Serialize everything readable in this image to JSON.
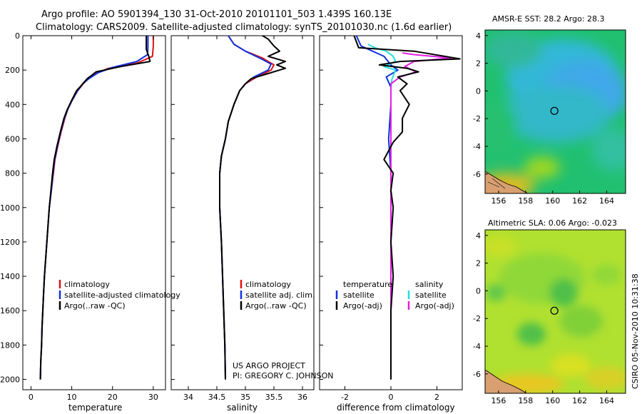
{
  "header": {
    "line1": "Argo profile: AO 5901394_130 31-Oct-2010 20101101_503 1.439S 160.13E",
    "line2": "Climatology: CARS2009. Satellite-adjusted climatology: synTS_20101030.nc (1.6d earlier)"
  },
  "credit": {
    "project": "US ARGO PROJECT",
    "pi": "PI: GREGORY C. JOHNSON"
  },
  "stamp": "CSIRO 05-Nov-2010 10:31:38",
  "colors": {
    "climatology": "#e01010",
    "satellite": "#1030e0",
    "argo": "#000000",
    "cyan": "#20e0e0",
    "magenta": "#e020e0"
  },
  "chart_data": [
    {
      "type": "line",
      "name": "temperature-profile",
      "xlabel": "temperature",
      "ylabel": "",
      "xlim": [
        -2,
        33
      ],
      "ylim": [
        2060,
        0
      ],
      "xticks": [
        "0",
        "10",
        "20",
        "30"
      ],
      "yticks": [
        "0",
        "200",
        "400",
        "600",
        "800",
        "1000",
        "1200",
        "1400",
        "1600",
        "1800",
        "2000"
      ],
      "legend": [
        "climatology",
        "satellite-adjusted climatology",
        "Argo(..raw -QC)"
      ],
      "series": [
        {
          "name": "climatology",
          "color": "#e01010",
          "points": [
            [
              30,
              0
            ],
            [
              30,
              60
            ],
            [
              29.8,
              120
            ],
            [
              26,
              160
            ],
            [
              19,
              190
            ],
            [
              16,
              220
            ],
            [
              14,
              250
            ],
            [
              12.8,
              280
            ],
            [
              11.5,
              320
            ],
            [
              10,
              380
            ],
            [
              9,
              430
            ],
            [
              8.3,
              480
            ],
            [
              7.4,
              560
            ],
            [
              6.6,
              640
            ],
            [
              5.9,
              720
            ],
            [
              5.5,
              800
            ],
            [
              5,
              900
            ],
            [
              4.5,
              1000
            ],
            [
              4.2,
              1100
            ],
            [
              3.9,
              1200
            ],
            [
              3.6,
              1300
            ],
            [
              3.3,
              1400
            ],
            [
              3.1,
              1500
            ],
            [
              2.9,
              1600
            ],
            [
              2.7,
              1700
            ],
            [
              2.6,
              1800
            ],
            [
              2.4,
              1900
            ],
            [
              2.3,
              2000
            ]
          ]
        },
        {
          "name": "satellite",
          "color": "#1030e0",
          "points": [
            [
              28.7,
              0
            ],
            [
              28.7,
              60
            ],
            [
              28.6,
              110
            ],
            [
              26,
              150
            ],
            [
              20,
              185
            ],
            [
              16.5,
              215
            ],
            [
              14.2,
              250
            ],
            [
              12.7,
              280
            ],
            [
              11.4,
              320
            ],
            [
              10,
              380
            ],
            [
              9,
              430
            ],
            [
              8.2,
              480
            ],
            [
              7.3,
              560
            ],
            [
              6.5,
              640
            ],
            [
              5.8,
              720
            ],
            [
              5.4,
              800
            ],
            [
              5,
              900
            ],
            [
              4.5,
              1000
            ],
            [
              4.2,
              1100
            ],
            [
              3.9,
              1200
            ],
            [
              3.6,
              1300
            ],
            [
              3.3,
              1400
            ],
            [
              3.1,
              1500
            ],
            [
              2.9,
              1600
            ],
            [
              2.7,
              1700
            ],
            [
              2.6,
              1800
            ],
            [
              2.4,
              1900
            ],
            [
              2.3,
              2000
            ]
          ]
        },
        {
          "name": "argo",
          "color": "#000000",
          "points": [
            [
              28.3,
              0
            ],
            [
              28.3,
              80
            ],
            [
              28.9,
              120
            ],
            [
              29.2,
              150
            ],
            [
              22,
              180
            ],
            [
              16,
              210
            ],
            [
              13.8,
              250
            ],
            [
              12.5,
              285
            ],
            [
              11.2,
              320
            ],
            [
              9.9,
              380
            ],
            [
              8.9,
              430
            ],
            [
              8.1,
              480
            ],
            [
              7.2,
              560
            ],
            [
              6.4,
              640
            ],
            [
              5.7,
              720
            ],
            [
              5.3,
              800
            ],
            [
              4.9,
              900
            ],
            [
              4.5,
              1000
            ],
            [
              4.2,
              1100
            ],
            [
              3.9,
              1200
            ],
            [
              3.6,
              1300
            ],
            [
              3.3,
              1400
            ],
            [
              3.1,
              1500
            ],
            [
              2.9,
              1600
            ],
            [
              2.7,
              1700
            ],
            [
              2.6,
              1800
            ],
            [
              2.4,
              1900
            ],
            [
              2.3,
              2000
            ]
          ]
        }
      ]
    },
    {
      "type": "line",
      "name": "salinity-profile",
      "xlabel": "salinity",
      "xlim": [
        33.7,
        36.2
      ],
      "ylim": [
        2060,
        0
      ],
      "xticks": [
        "34",
        "34.5",
        "35",
        "35.5",
        "36"
      ],
      "legend": [
        "climatology",
        "satellite adj. clim.",
        "Argo(..raw -QC)"
      ],
      "series": [
        {
          "name": "climatology",
          "color": "#e01010",
          "points": [
            [
              34.7,
              0
            ],
            [
              34.8,
              50
            ],
            [
              35,
              90
            ],
            [
              35.3,
              130
            ],
            [
              35.5,
              170
            ],
            [
              35.45,
              200
            ],
            [
              35.2,
              240
            ],
            [
              35,
              280
            ],
            [
              34.9,
              320
            ],
            [
              34.8,
              400
            ],
            [
              34.7,
              500
            ],
            [
              34.65,
              600
            ],
            [
              34.58,
              700
            ],
            [
              34.55,
              800
            ],
            [
              34.55,
              1000
            ],
            [
              34.58,
              1200
            ],
            [
              34.6,
              1400
            ],
            [
              34.62,
              1600
            ],
            [
              34.64,
              1800
            ],
            [
              34.65,
              2000
            ]
          ]
        },
        {
          "name": "satellite",
          "color": "#1030e0",
          "points": [
            [
              34.7,
              0
            ],
            [
              34.8,
              50
            ],
            [
              35,
              90
            ],
            [
              35.25,
              130
            ],
            [
              35.45,
              165
            ],
            [
              35.4,
              200
            ],
            [
              35.15,
              240
            ],
            [
              35,
              280
            ],
            [
              34.9,
              320
            ],
            [
              34.8,
              400
            ],
            [
              34.7,
              500
            ],
            [
              34.65,
              600
            ],
            [
              34.58,
              700
            ],
            [
              34.55,
              800
            ],
            [
              34.55,
              1000
            ],
            [
              34.58,
              1200
            ],
            [
              34.6,
              1400
            ],
            [
              34.62,
              1600
            ],
            [
              34.64,
              1800
            ],
            [
              34.65,
              2000
            ]
          ]
        },
        {
          "name": "argo",
          "color": "#000000",
          "points": [
            [
              35.3,
              0
            ],
            [
              35.4,
              20
            ],
            [
              35.5,
              60
            ],
            [
              35.6,
              90
            ],
            [
              35.4,
              120
            ],
            [
              35.7,
              150
            ],
            [
              35.55,
              170
            ],
            [
              35.7,
              190
            ],
            [
              35.4,
              220
            ],
            [
              35.1,
              250
            ],
            [
              35,
              280
            ],
            [
              34.9,
              320
            ],
            [
              34.8,
              400
            ],
            [
              34.7,
              500
            ],
            [
              34.65,
              600
            ],
            [
              34.58,
              700
            ],
            [
              34.55,
              800
            ],
            [
              34.55,
              1000
            ],
            [
              34.58,
              1200
            ],
            [
              34.6,
              1400
            ],
            [
              34.62,
              1600
            ],
            [
              34.64,
              1800
            ],
            [
              34.65,
              2000
            ]
          ]
        }
      ]
    },
    {
      "type": "line",
      "name": "difference-profile",
      "xlabel": "difference from climatology",
      "xlim": [
        -3.1,
        3.1
      ],
      "ylim": [
        2060,
        0
      ],
      "xticks": [
        "-2",
        "0",
        "2"
      ],
      "legend_temperature": [
        "temperature",
        "satellite",
        "Argo(-adj)"
      ],
      "legend_salinity": [
        "salinity",
        "satellite",
        "Argo(-adj)"
      ],
      "series": [
        {
          "name": "temperature-satellite",
          "color": "#1030e0",
          "points": [
            [
              -1.5,
              0
            ],
            [
              -1.3,
              60
            ],
            [
              -0.3,
              120
            ],
            [
              0,
              170
            ],
            [
              0.3,
              200
            ],
            [
              -0.2,
              240
            ],
            [
              0,
              300
            ],
            [
              0,
              400
            ],
            [
              -0.1,
              600
            ],
            [
              0,
              800
            ],
            [
              0,
              1000
            ],
            [
              0,
              1200
            ],
            [
              0,
              1400
            ],
            [
              0,
              1600
            ],
            [
              0,
              1800
            ],
            [
              0,
              2000
            ]
          ]
        },
        {
          "name": "salinity-satellite",
          "color": "#20e0e0",
          "points": [
            [
              -1,
              50
            ],
            [
              -0.7,
              70
            ],
            [
              -0.2,
              90
            ],
            [
              0.1,
              120
            ],
            [
              0.2,
              150
            ],
            [
              -0.3,
              180
            ],
            [
              0.2,
              200
            ],
            [
              0.05,
              250
            ],
            [
              0,
              300
            ],
            [
              0,
              400
            ],
            [
              0,
              600
            ],
            [
              0,
              800
            ],
            [
              0,
              1000
            ],
            [
              0,
              1200
            ],
            [
              0,
              1400
            ],
            [
              0,
              1600
            ],
            [
              0,
              1800
            ],
            [
              0,
              2000
            ]
          ]
        },
        {
          "name": "salinity-argo",
          "color": "#e020e0",
          "points": [
            [
              0.5,
              100
            ],
            [
              1,
              110
            ],
            [
              2.6,
              130
            ],
            [
              1,
              150
            ],
            [
              0.6,
              180
            ],
            [
              1.1,
              210
            ],
            [
              0.4,
              240
            ],
            [
              0,
              280
            ],
            [
              0,
              320
            ],
            [
              0,
              400
            ],
            [
              0,
              600
            ],
            [
              0,
              800
            ],
            [
              0,
              1000
            ],
            [
              0,
              1200
            ],
            [
              0,
              1400
            ],
            [
              0,
              1600
            ],
            [
              0,
              1800
            ],
            [
              0,
              2000
            ]
          ]
        },
        {
          "name": "temperature-argo",
          "color": "#000000",
          "points": [
            [
              -1.6,
              0
            ],
            [
              -1.4,
              70
            ],
            [
              1,
              90
            ],
            [
              3,
              135
            ],
            [
              0.4,
              150
            ],
            [
              -0.5,
              170
            ],
            [
              0.7,
              190
            ],
            [
              1.2,
              210
            ],
            [
              0.3,
              240
            ],
            [
              0.7,
              280
            ],
            [
              0.4,
              320
            ],
            [
              0.8,
              400
            ],
            [
              0.5,
              480
            ],
            [
              0.5,
              560
            ],
            [
              0.1,
              620
            ],
            [
              -0.3,
              720
            ],
            [
              0.1,
              800
            ],
            [
              0,
              900
            ],
            [
              0.1,
              1000
            ],
            [
              0,
              1200
            ],
            [
              0.1,
              1400
            ],
            [
              0,
              1600
            ],
            [
              0,
              1800
            ],
            [
              0,
              2000
            ]
          ]
        }
      ]
    }
  ],
  "maps": [
    {
      "name": "sst-map",
      "title": "AMSR-E SST: 28.2 Argo: 28.3",
      "xticks": [
        "156",
        "158",
        "160",
        "162",
        "164"
      ],
      "yticks": [
        "4",
        "2",
        "0",
        "-2",
        "-4",
        "-6"
      ],
      "xlim": [
        155,
        165.4
      ],
      "ylim": [
        -7.4,
        4.4
      ],
      "argo_marker": [
        160.13,
        -1.439
      ]
    },
    {
      "name": "sla-map",
      "title": "Altimetric SLA: 0.06 Argo: -0.023",
      "xticks": [
        "156",
        "158",
        "160",
        "162",
        "164"
      ],
      "yticks": [
        "4",
        "2",
        "0",
        "-2",
        "-4",
        "-6"
      ],
      "xlim": [
        155,
        165.4
      ],
      "ylim": [
        -7.4,
        4.4
      ],
      "argo_marker": [
        160.13,
        -1.439
      ]
    }
  ]
}
